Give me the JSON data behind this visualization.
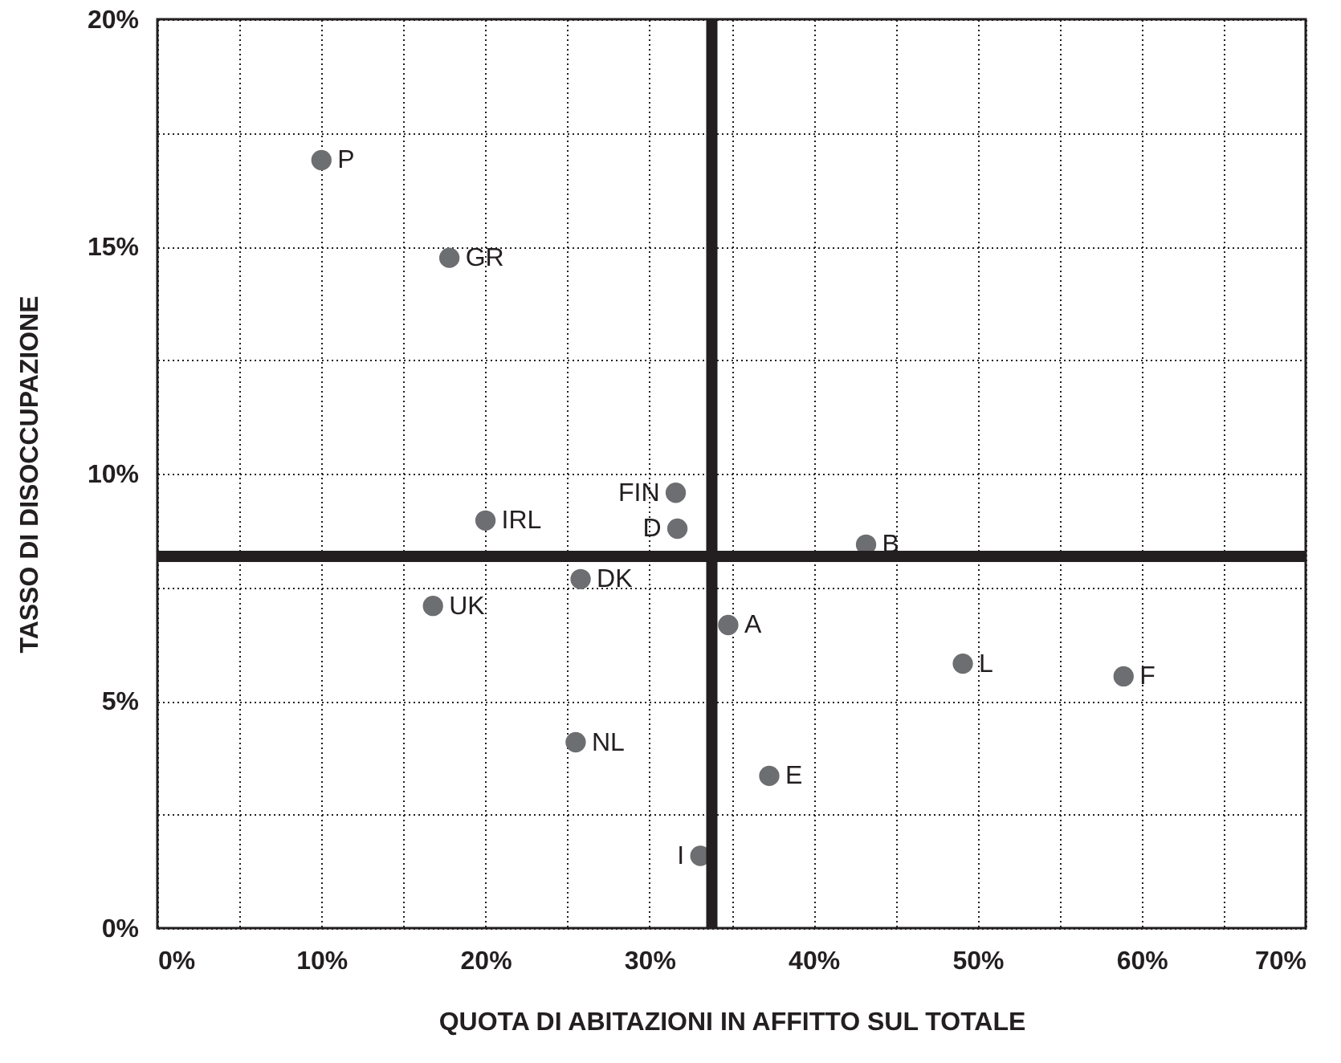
{
  "chart_data": {
    "type": "scatter",
    "xlabel": "QUOTA DI ABITAZIONI IN AFFITTO SUL TOTALE",
    "ylabel": "TASSO DI DISOCCUPAZIONE",
    "xlim": [
      0,
      70
    ],
    "ylim": [
      0,
      20
    ],
    "xticks": [
      {
        "value": 0,
        "label": "0%"
      },
      {
        "value": 5,
        "label": null
      },
      {
        "value": 10,
        "label": "10%"
      },
      {
        "value": 15,
        "label": null
      },
      {
        "value": 20,
        "label": "20%"
      },
      {
        "value": 25,
        "label": null
      },
      {
        "value": 30,
        "label": "30%"
      },
      {
        "value": 35,
        "label": null
      },
      {
        "value": 40,
        "label": "40%"
      },
      {
        "value": 45,
        "label": null
      },
      {
        "value": 50,
        "label": "50%"
      },
      {
        "value": 55,
        "label": null
      },
      {
        "value": 60,
        "label": "60%"
      },
      {
        "value": 65,
        "label": null
      },
      {
        "value": 70,
        "label": "70%"
      }
    ],
    "yticks": [
      {
        "value": 0,
        "label": "0%"
      },
      {
        "value": 2.5,
        "label": null
      },
      {
        "value": 5,
        "label": "5%"
      },
      {
        "value": 7.5,
        "label": null
      },
      {
        "value": 10,
        "label": "10%"
      },
      {
        "value": 12.5,
        "label": null
      },
      {
        "value": 15,
        "label": "15%"
      },
      {
        "value": 17.5,
        "label": null
      },
      {
        "value": 20,
        "label": "20%"
      }
    ],
    "grid": true,
    "marker": "circle",
    "series": [
      {
        "name": "P",
        "color": "#6d6e71",
        "x": [
          10.0
        ],
        "values": [
          16.9
        ]
      },
      {
        "name": "GR",
        "color": "#6d6e71",
        "x": [
          17.8
        ],
        "values": [
          14.75
        ]
      },
      {
        "name": "IRL",
        "color": "#6d6e71",
        "x": [
          20.0
        ],
        "values": [
          8.97
        ]
      },
      {
        "name": "FIN",
        "color": "#6d6e71",
        "x": [
          31.6
        ],
        "values": [
          9.58
        ]
      },
      {
        "name": "D",
        "color": "#6d6e71",
        "x": [
          31.7
        ],
        "values": [
          8.79
        ]
      },
      {
        "name": "DK",
        "color": "#6d6e71",
        "x": [
          25.8
        ],
        "values": [
          7.68
        ]
      },
      {
        "name": "UK",
        "color": "#6d6e71",
        "x": [
          16.8
        ],
        "values": [
          7.09
        ]
      },
      {
        "name": "B",
        "color": "#6d6e71",
        "x": [
          43.2
        ],
        "values": [
          8.44
        ]
      },
      {
        "name": "A",
        "color": "#6d6e71",
        "x": [
          34.8
        ],
        "values": [
          6.67
        ]
      },
      {
        "name": "L",
        "color": "#6d6e71",
        "x": [
          49.1
        ],
        "values": [
          5.82
        ]
      },
      {
        "name": "F",
        "color": "#6d6e71",
        "x": [
          58.9
        ],
        "values": [
          5.54
        ]
      },
      {
        "name": "NL",
        "color": "#6d6e71",
        "x": [
          25.5
        ],
        "values": [
          4.09
        ]
      },
      {
        "name": "E",
        "color": "#6d6e71",
        "x": [
          37.3
        ],
        "values": [
          3.35
        ]
      },
      {
        "name": "I",
        "color": "#6d6e71",
        "x": [
          33.1
        ],
        "values": [
          1.59
        ]
      }
    ],
    "ref_lines": [
      {
        "axis": "x",
        "value": 33.8,
        "color": "#231f20"
      },
      {
        "axis": "y",
        "value": 8.18,
        "color": "#231f20"
      }
    ]
  }
}
